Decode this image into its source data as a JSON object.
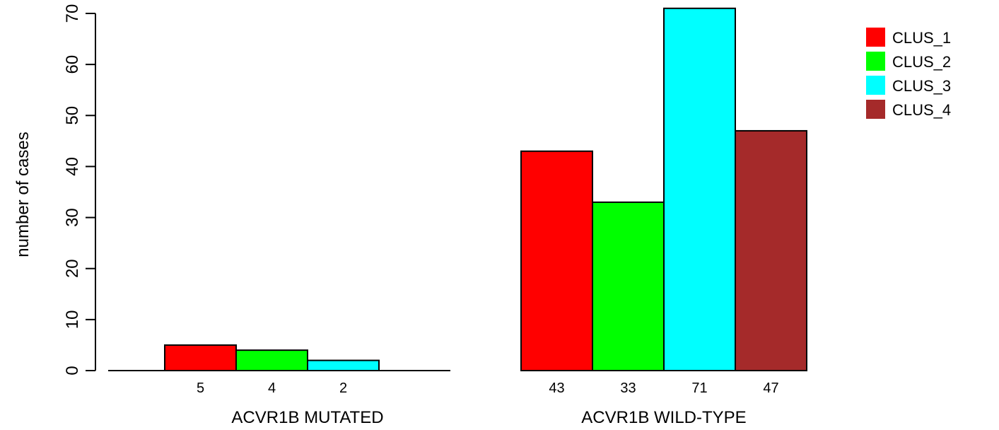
{
  "chart_data": {
    "type": "bar",
    "title": "",
    "xlabel": "",
    "ylabel": "number of cases",
    "ylim": [
      0,
      70
    ],
    "yticks": [
      0,
      10,
      20,
      30,
      40,
      50,
      60,
      70
    ],
    "grid": false,
    "legend_position": "top-right",
    "groups": [
      "ACVR1B MUTATED",
      "ACVR1B WILD-TYPE"
    ],
    "series": [
      {
        "name": "CLUS_1",
        "color": "#FF0000",
        "values": [
          5,
          43
        ]
      },
      {
        "name": "CLUS_2",
        "color": "#00FF00",
        "values": [
          4,
          33
        ]
      },
      {
        "name": "CLUS_3",
        "color": "#00FFFF",
        "values": [
          2,
          71
        ]
      },
      {
        "name": "CLUS_4",
        "color": "#A52A2A",
        "values": [
          0,
          47
        ]
      }
    ],
    "data_labels": [
      [
        "5",
        "4",
        "2",
        ""
      ],
      [
        "43",
        "33",
        "71",
        "47"
      ]
    ]
  }
}
